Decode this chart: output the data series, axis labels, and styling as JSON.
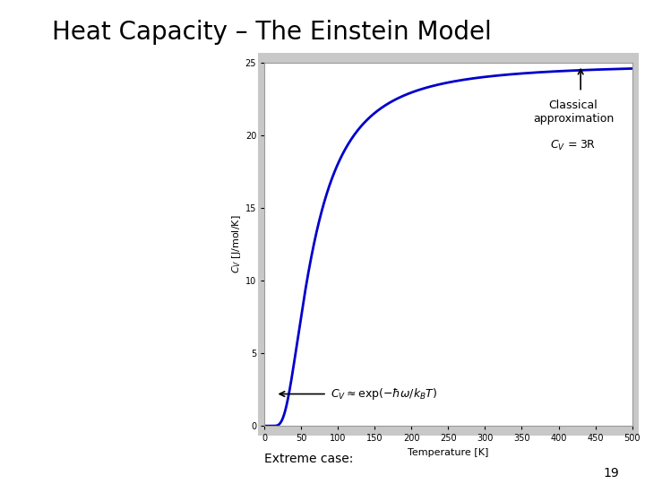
{
  "title": "Heat Capacity – The Einstein Model",
  "title_fontsize": 20,
  "xlabel": "Temperature [K]",
  "ylabel": "C_V [J/mol/K]",
  "xlim": [
    0,
    500
  ],
  "ylim": [
    0,
    25
  ],
  "yticks": [
    0,
    5,
    10,
    15,
    20,
    25
  ],
  "xticks": [
    0,
    50,
    100,
    150,
    200,
    250,
    300,
    350,
    400,
    450,
    500
  ],
  "T_einstein": 200,
  "line_color": "#0000CC",
  "line_width": 2.0,
  "bg_color": "#C8C8C8",
  "annotation_fontsize": 9
}
